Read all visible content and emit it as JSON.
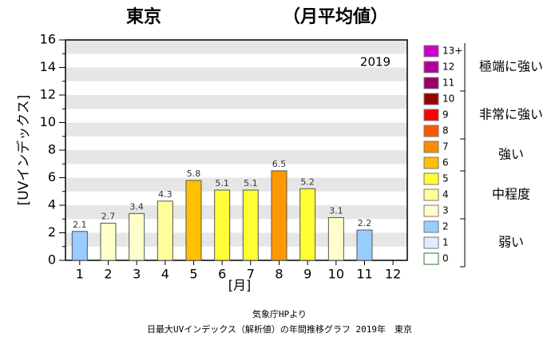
{
  "chart_data": {
    "type": "bar",
    "title": "東京",
    "subtitle": "（月平均値）",
    "annotation": "2019",
    "y_label": "[UVインデックス]",
    "x_label": "[月]",
    "source": "気象庁HPより",
    "caption": "日最大UVインデックス（解析値）の年間推移グラフ 2019年　東京",
    "categories": [
      "1",
      "2",
      "3",
      "4",
      "5",
      "6",
      "7",
      "8",
      "9",
      "10",
      "11",
      "12"
    ],
    "values": [
      2.1,
      2.7,
      3.4,
      4.3,
      5.8,
      5.1,
      5.1,
      6.5,
      5.2,
      3.1,
      2.2,
      null
    ],
    "colors": [
      "#99ccff",
      "#ffffcc",
      "#ffffcc",
      "#ffff99",
      "#ffc000",
      "#ffff33",
      "#ffff33",
      "#ff9900",
      "#ffff33",
      "#ffffcc",
      "#99ccff",
      "#ffffff"
    ],
    "ylim": [
      0,
      16
    ],
    "yticks": [
      0,
      2,
      4,
      6,
      8,
      10,
      12,
      14,
      16
    ],
    "grid": true,
    "legend": {
      "groups": [
        {
          "label": "極端に強い",
          "items": [
            {
              "label": "13+",
              "color": "#cc00cc"
            },
            {
              "label": "12",
              "color": "#b3009b"
            },
            {
              "label": "11",
              "color": "#990066"
            }
          ]
        },
        {
          "label": "非常に強い",
          "items": [
            {
              "label": "10",
              "color": "#990000"
            },
            {
              "label": "9",
              "color": "#ff0000"
            },
            {
              "label": "8",
              "color": "#ff5500"
            }
          ]
        },
        {
          "label": "強い",
          "items": [
            {
              "label": "7",
              "color": "#ff8c00"
            },
            {
              "label": "6",
              "color": "#ffc000"
            }
          ]
        },
        {
          "label": "中程度",
          "items": [
            {
              "label": "5",
              "color": "#ffff33"
            },
            {
              "label": "4",
              "color": "#ffff99"
            },
            {
              "label": "3",
              "color": "#ffffcc"
            }
          ]
        },
        {
          "label": "弱い",
          "items": [
            {
              "label": "2",
              "color": "#99ccff"
            },
            {
              "label": "1",
              "color": "#ddeeff"
            },
            {
              "label": "0",
              "color": "#ffffff"
            }
          ]
        }
      ]
    }
  }
}
